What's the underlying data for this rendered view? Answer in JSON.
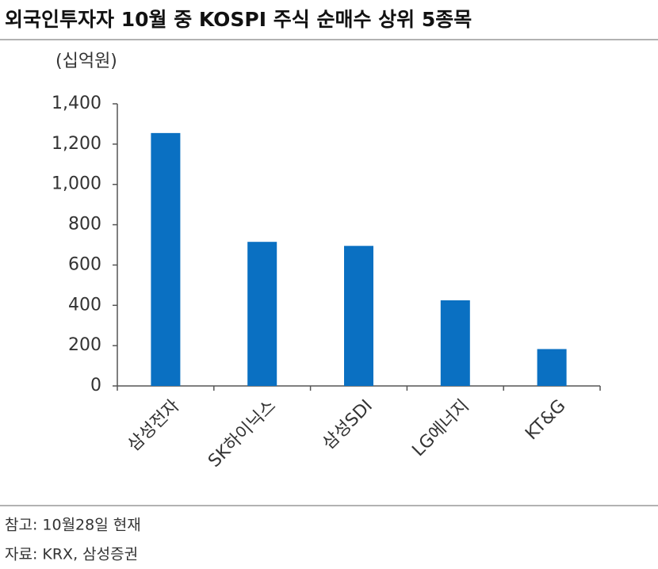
{
  "chart_data": {
    "type": "bar",
    "title": "외국인투자자 10월 중 KOSPI 주식 순매수 상위 5종목",
    "y_label": "(십억원)",
    "categories": [
      "삼성전자",
      "SK하이닉스",
      "삼성SDI",
      "LG에너지",
      "KT&G"
    ],
    "values": [
      1255,
      715,
      695,
      425,
      183
    ],
    "color": "#0a70c2",
    "ylim": [
      0,
      1400
    ],
    "yticks": [
      0,
      200,
      400,
      600,
      800,
      {
        "value": 1000,
        "label": "1,000"
      },
      {
        "value": 1200,
        "label": "1,200"
      },
      {
        "value": 1400,
        "label": "1,400"
      }
    ],
    "grid": false,
    "notes": [
      "참고: 10월28일 현재",
      "자료: KRX, 삼성증권"
    ]
  }
}
